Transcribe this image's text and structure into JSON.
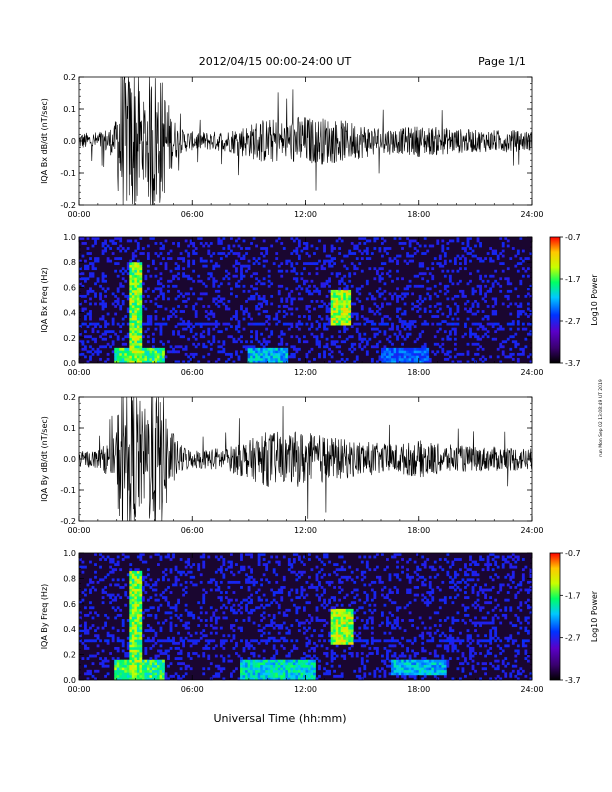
{
  "header": {
    "title": "2012/04/15  00:00-24:00 UT",
    "page": "Page 1/1"
  },
  "footer": {
    "xlabel": "Universal Time (hh:mm)",
    "stamp": "run Mon Sep 02 13:08:49 UT 2019"
  },
  "colors": {
    "trace": "#000000",
    "spectrogram_background": "#1a0630",
    "colormap": [
      "#000000",
      "#3a0070",
      "#5a00c8",
      "#0032ff",
      "#00c8ff",
      "#00ff64",
      "#c8ff00",
      "#ffc800",
      "#ff3200",
      "#ff0000"
    ]
  },
  "chart_data": [
    {
      "type": "line",
      "ylabel": "IQA Bx dB/dt (nT/sec)",
      "xlim": [
        "00:00",
        "24:00"
      ],
      "ylim": [
        -0.2,
        0.2
      ],
      "x_ticks": [
        "00:00",
        "06:00",
        "12:00",
        "18:00",
        "24:00"
      ],
      "y_ticks": [
        "0.2",
        "0.1",
        "0.0",
        "-0.1",
        "-0.2"
      ],
      "envelope": {
        "hours": [
          0,
          1,
          1.9,
          2.2,
          2.6,
          3.0,
          3.4,
          3.9,
          4.4,
          4.9,
          5.3,
          6,
          7,
          8,
          8.5,
          9,
          9.5,
          10,
          10.5,
          11,
          11.5,
          12,
          12.5,
          13,
          13.5,
          14,
          14.5,
          15,
          16,
          17,
          18,
          18.5,
          19,
          20,
          21,
          22,
          23,
          24
        ],
        "amplitude": [
          0.025,
          0.03,
          0.05,
          0.25,
          0.22,
          0.25,
          0.12,
          0.25,
          0.2,
          0.09,
          0.04,
          0.03,
          0.03,
          0.035,
          0.05,
          0.05,
          0.07,
          0.07,
          0.07,
          0.06,
          0.08,
          0.08,
          0.07,
          0.075,
          0.07,
          0.065,
          0.06,
          0.055,
          0.045,
          0.04,
          0.05,
          0.045,
          0.045,
          0.04,
          0.035,
          0.035,
          0.035,
          0.03
        ]
      }
    },
    {
      "type": "heatmap",
      "ylabel": "IQA Bx Freq (Hz)",
      "xlim": [
        "00:00",
        "24:00"
      ],
      "ylim": [
        0,
        1.0
      ],
      "x_ticks": [
        "00:00",
        "06:00",
        "12:00",
        "18:00",
        "24:00"
      ],
      "y_ticks": [
        "1.0",
        "0.8",
        "0.6",
        "0.4",
        "0.2",
        "0.0"
      ],
      "colorbar": {
        "label": "Log10 Power",
        "ticks": [
          "-0.7",
          "-1.7",
          "-2.7",
          "-3.7"
        ],
        "range": [
          -3.7,
          -0.7
        ]
      },
      "features": [
        {
          "hours": [
            2.7,
            3.3
          ],
          "freq_range": [
            0.0,
            0.8
          ],
          "level": 0.75
        },
        {
          "hours": [
            1.8,
            4.6
          ],
          "freq_range": [
            0.0,
            0.12
          ],
          "level": 0.7
        },
        {
          "hours": [
            13.3,
            14.4
          ],
          "freq_range": [
            0.3,
            0.57
          ],
          "level": 0.8
        },
        {
          "hours": [
            9,
            11
          ],
          "freq_range": [
            0.0,
            0.12
          ],
          "level": 0.55
        },
        {
          "hours": [
            16,
            18.5
          ],
          "freq_range": [
            0.0,
            0.12
          ],
          "level": 0.45
        },
        {
          "hours": [
            0,
            24
          ],
          "freq_range": [
            0.3,
            0.32
          ],
          "level": 0.35
        }
      ]
    },
    {
      "type": "line",
      "ylabel": "IQA By dB/dt (nT/sec)",
      "xlim": [
        "00:00",
        "24:00"
      ],
      "ylim": [
        -0.2,
        0.2
      ],
      "x_ticks": [
        "00:00",
        "06:00",
        "12:00",
        "18:00",
        "24:00"
      ],
      "y_ticks": [
        "0.2",
        "0.1",
        "0.0",
        "-0.1",
        "-0.2"
      ],
      "envelope": {
        "hours": [
          0,
          1,
          1.9,
          2.2,
          2.6,
          3.0,
          3.4,
          3.9,
          4.4,
          4.9,
          5.3,
          6,
          7,
          8,
          8.5,
          9,
          9.5,
          10,
          10.5,
          11,
          11.5,
          12,
          12.5,
          13,
          13.5,
          14,
          14.5,
          15,
          16,
          17,
          18,
          18.5,
          19,
          20,
          21,
          22,
          23,
          24
        ],
        "amplitude": [
          0.025,
          0.03,
          0.07,
          0.25,
          0.22,
          0.25,
          0.15,
          0.25,
          0.22,
          0.1,
          0.05,
          0.03,
          0.035,
          0.04,
          0.06,
          0.06,
          0.08,
          0.09,
          0.09,
          0.07,
          0.09,
          0.09,
          0.08,
          0.08,
          0.07,
          0.065,
          0.06,
          0.06,
          0.05,
          0.05,
          0.06,
          0.06,
          0.05,
          0.045,
          0.04,
          0.04,
          0.04,
          0.035
        ]
      }
    },
    {
      "type": "heatmap",
      "ylabel": "IQA By Freq (Hz)",
      "xlim": [
        "00:00",
        "24:00"
      ],
      "ylim": [
        0,
        1.0
      ],
      "x_ticks": [
        "00:00",
        "06:00",
        "12:00",
        "18:00",
        "24:00"
      ],
      "y_ticks": [
        "1.0",
        "0.8",
        "0.6",
        "0.4",
        "0.2",
        "0.0"
      ],
      "colorbar": {
        "label": "Log10 Power",
        "ticks": [
          "-0.7",
          "-1.7",
          "-2.7",
          "-3.7"
        ],
        "range": [
          -3.7,
          -0.7
        ]
      },
      "features": [
        {
          "hours": [
            2.7,
            3.3
          ],
          "freq_range": [
            0.0,
            0.85
          ],
          "level": 0.75
        },
        {
          "hours": [
            1.8,
            4.6
          ],
          "freq_range": [
            0.0,
            0.15
          ],
          "level": 0.7
        },
        {
          "hours": [
            13.3,
            14.5
          ],
          "freq_range": [
            0.28,
            0.55
          ],
          "level": 0.8
        },
        {
          "hours": [
            8.5,
            12.5
          ],
          "freq_range": [
            0.0,
            0.15
          ],
          "level": 0.6
        },
        {
          "hours": [
            16.5,
            19.5
          ],
          "freq_range": [
            0.05,
            0.15
          ],
          "level": 0.55
        },
        {
          "hours": [
            0,
            24
          ],
          "freq_range": [
            0.3,
            0.32
          ],
          "level": 0.35
        }
      ]
    }
  ]
}
